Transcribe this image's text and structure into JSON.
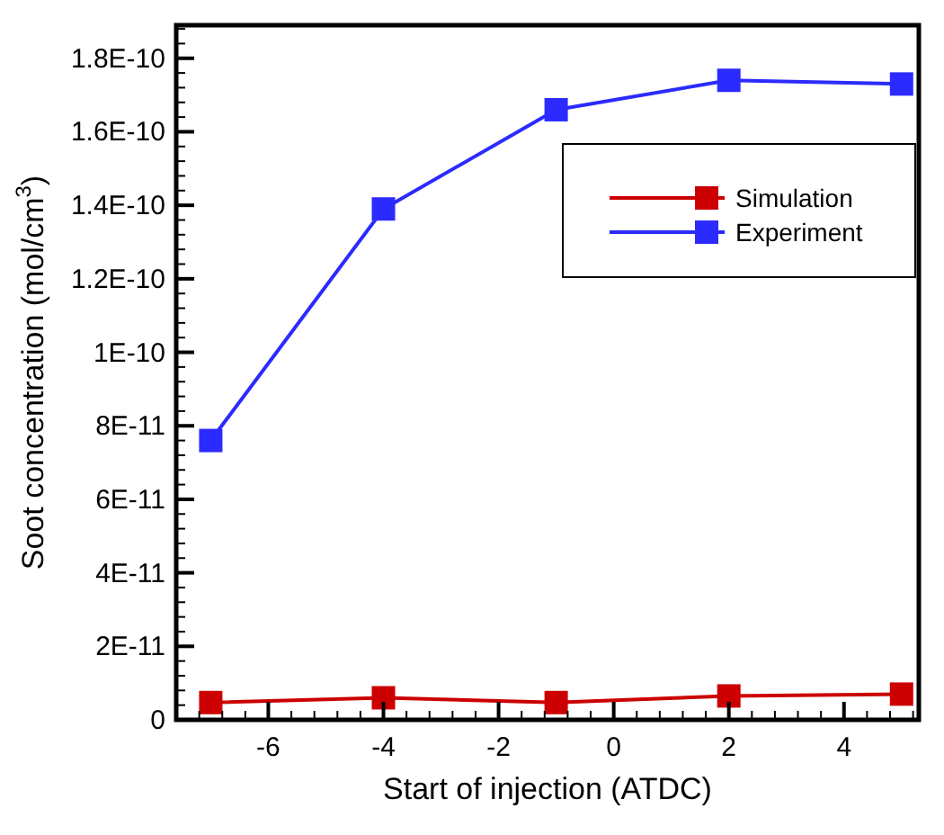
{
  "chart_data": {
    "type": "line",
    "xlabel": "Start of injection (ATDC)",
    "ylabel": "Soot concentration (mol/cm$^{3}$)",
    "x": [
      -7,
      -4,
      -1,
      2,
      5
    ],
    "series": [
      {
        "name": "Simulation",
        "color": "#cc0000",
        "values": [
          4.7e-12,
          6e-12,
          4.7e-12,
          6.5e-12,
          7e-12
        ]
      },
      {
        "name": "Experiment",
        "color": "#2b2bff",
        "values": [
          7.6e-11,
          1.39e-10,
          1.66e-10,
          1.74e-10,
          1.73e-10
        ]
      }
    ],
    "xlim": [
      -7.6,
      5.3
    ],
    "xticks": [
      -6,
      -4,
      -2,
      0,
      2,
      4
    ],
    "ylim": [
      0,
      1.89e-10
    ],
    "yticks": [
      {
        "value": 0,
        "label": "0"
      },
      {
        "value": 2e-11,
        "label": "2E-11"
      },
      {
        "value": 4e-11,
        "label": "4E-11"
      },
      {
        "value": 6e-11,
        "label": "6E-11"
      },
      {
        "value": 8e-11,
        "label": "8E-11"
      },
      {
        "value": 1e-10,
        "label": "1E-10"
      },
      {
        "value": 1.2e-10,
        "label": "1.2E-10"
      },
      {
        "value": 1.4e-10,
        "label": "1.4E-10"
      },
      {
        "value": 1.6e-10,
        "label": "1.6E-10"
      },
      {
        "value": 1.8e-10,
        "label": "1.8E-10"
      }
    ],
    "legend": "top right",
    "marker": "square",
    "line_style": "solid",
    "grid": false
  }
}
